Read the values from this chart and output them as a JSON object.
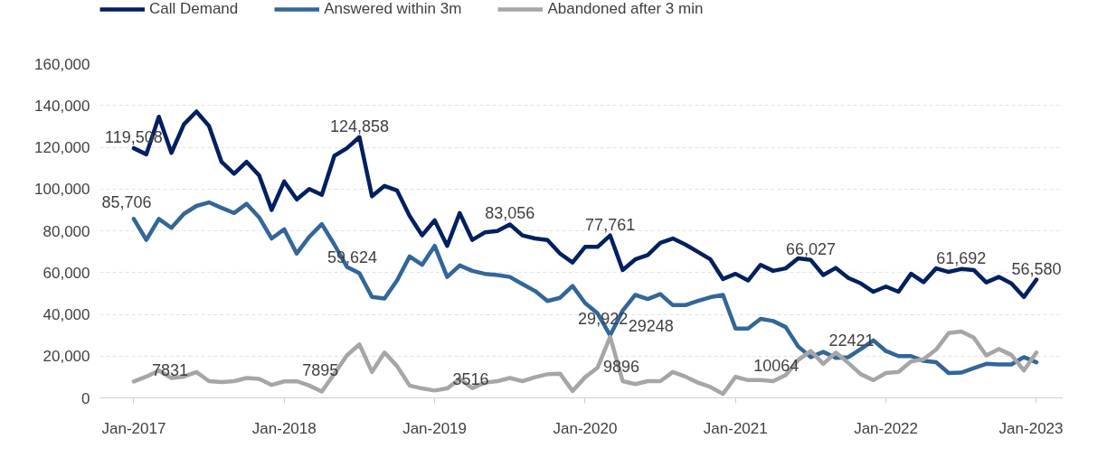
{
  "chart_data": {
    "type": "line",
    "x": [
      "2017-01",
      "2017-02",
      "2017-03",
      "2017-04",
      "2017-05",
      "2017-06",
      "2017-07",
      "2017-08",
      "2017-09",
      "2017-10",
      "2017-11",
      "2017-12",
      "2018-01",
      "2018-02",
      "2018-03",
      "2018-04",
      "2018-05",
      "2018-06",
      "2018-07",
      "2018-08",
      "2018-09",
      "2018-10",
      "2018-11",
      "2018-12",
      "2019-01",
      "2019-02",
      "2019-03",
      "2019-04",
      "2019-05",
      "2019-06",
      "2019-07",
      "2019-08",
      "2019-09",
      "2019-10",
      "2019-11",
      "2019-12",
      "2020-01",
      "2020-02",
      "2020-03",
      "2020-04",
      "2020-05",
      "2020-06",
      "2020-07",
      "2020-08",
      "2020-09",
      "2020-10",
      "2020-11",
      "2020-12",
      "2021-01",
      "2021-02",
      "2021-03",
      "2021-04",
      "2021-05",
      "2021-06",
      "2021-07",
      "2021-08",
      "2021-09",
      "2021-10",
      "2021-11",
      "2021-12",
      "2022-01",
      "2022-02",
      "2022-03",
      "2022-04",
      "2022-05",
      "2022-06",
      "2022-07",
      "2022-08",
      "2022-09",
      "2022-10",
      "2022-11",
      "2022-12",
      "2023-01"
    ],
    "series": [
      {
        "name": "Call Demand",
        "color": "#002060",
        "values": [
          119508,
          116600,
          134600,
          117300,
          131000,
          137100,
          130200,
          113000,
          107300,
          113000,
          106500,
          90000,
          103600,
          95000,
          100000,
          97200,
          115900,
          119500,
          124858,
          96500,
          101500,
          99300,
          87100,
          77800,
          85000,
          72800,
          88500,
          75600,
          79200,
          79900,
          83056,
          77800,
          76300,
          75600,
          69100,
          64800,
          72300,
          72300,
          77761,
          61200,
          66300,
          68400,
          74200,
          76300,
          73400,
          69900,
          66300,
          56900,
          59400,
          56200,
          63700,
          60800,
          62000,
          66800,
          66027,
          58800,
          62200,
          57400,
          54800,
          50800,
          53300,
          50800,
          59400,
          55400,
          62000,
          60300,
          61692,
          61200,
          55300,
          57900,
          54800,
          48300,
          56580
        ],
        "value_labels": [
          "119,508",
          null,
          null,
          null,
          null,
          null,
          null,
          null,
          null,
          null,
          null,
          null,
          null,
          null,
          null,
          null,
          null,
          null,
          "124,858",
          null,
          null,
          null,
          null,
          null,
          null,
          null,
          null,
          null,
          null,
          null,
          "83,056",
          null,
          null,
          null,
          null,
          null,
          null,
          null,
          "77,761",
          null,
          null,
          null,
          null,
          null,
          null,
          null,
          null,
          null,
          null,
          null,
          null,
          null,
          null,
          null,
          "66,027",
          null,
          null,
          null,
          null,
          null,
          null,
          null,
          null,
          null,
          null,
          null,
          "61,692",
          null,
          null,
          null,
          null,
          null,
          "56,580"
        ]
      },
      {
        "name": "Answered within 3m",
        "color": "#336699",
        "values": [
          85706,
          75600,
          85700,
          81400,
          88100,
          91900,
          93600,
          91000,
          88500,
          92900,
          86400,
          76300,
          80700,
          69100,
          77100,
          83200,
          73400,
          62700,
          59624,
          48300,
          47600,
          56200,
          67700,
          63700,
          72800,
          57900,
          63400,
          60800,
          59400,
          58800,
          57900,
          54500,
          51200,
          46400,
          47900,
          53600,
          45400,
          40400,
          29922,
          41800,
          49300,
          47300,
          49700,
          44400,
          44400,
          46400,
          48200,
          49300,
          33200,
          33200,
          37800,
          36800,
          33900,
          24600,
          19500,
          22000,
          19100,
          19500,
          23400,
          27500,
          22400,
          20000,
          20000,
          17700,
          17100,
          11900,
          12100,
          14200,
          16300,
          16000,
          16000,
          19500,
          17000
        ],
        "value_labels": [
          "85,706",
          null,
          null,
          null,
          null,
          null,
          null,
          null,
          null,
          null,
          null,
          null,
          null,
          null,
          null,
          null,
          null,
          null,
          "59,624",
          null,
          null,
          null,
          null,
          null,
          null,
          null,
          null,
          null,
          null,
          null,
          null,
          null,
          null,
          null,
          null,
          null,
          null,
          null,
          "29,922",
          null,
          null,
          null,
          null,
          null,
          null,
          null,
          null,
          null,
          null,
          null,
          null,
          null,
          null,
          null,
          null,
          null,
          null,
          null,
          null,
          null,
          null,
          null,
          null,
          null,
          null,
          null,
          null,
          null,
          null,
          null,
          null,
          null,
          null
        ]
      },
      {
        "name": "Abandoned after 3 min",
        "color": "#a6a6a6",
        "values": [
          7831,
          10200,
          13100,
          9500,
          10200,
          12400,
          8000,
          7600,
          8000,
          9500,
          9100,
          6200,
          7895,
          8000,
          5900,
          3000,
          11600,
          20300,
          25600,
          12400,
          21700,
          15200,
          5900,
          4500,
          3516,
          4500,
          9100,
          4700,
          7300,
          8000,
          9500,
          8000,
          9900,
          11300,
          11600,
          3300,
          9896,
          14500,
          29248,
          8000,
          6600,
          8000,
          8000,
          12400,
          10200,
          7300,
          5200,
          1900,
          10064,
          8500,
          8500,
          8000,
          10900,
          18100,
          22421,
          16300,
          21700,
          16700,
          11300,
          8500,
          11900,
          12400,
          17400,
          18500,
          23100,
          31000,
          31800,
          28900,
          20300,
          23400,
          20600,
          13100,
          21700
        ],
        "value_labels": [
          "7831",
          null,
          null,
          null,
          null,
          null,
          null,
          null,
          null,
          null,
          null,
          null,
          "7895",
          null,
          null,
          null,
          null,
          null,
          null,
          null,
          null,
          null,
          null,
          null,
          "3516",
          null,
          null,
          null,
          null,
          null,
          null,
          null,
          null,
          null,
          null,
          null,
          "9896",
          null,
          "29248",
          null,
          null,
          null,
          null,
          null,
          null,
          null,
          null,
          null,
          "10064",
          null,
          null,
          null,
          null,
          null,
          "22421",
          null,
          null,
          null,
          null,
          null,
          null,
          null,
          null,
          null,
          null,
          null,
          null,
          null,
          null,
          null,
          null,
          null,
          null
        ]
      }
    ],
    "xlim": [
      "2016-10-10",
      "2023-03-05"
    ],
    "xticks": [
      {
        "value": "2017-01",
        "label": "Jan-2017"
      },
      {
        "value": "2018-01",
        "label": "Jan-2018"
      },
      {
        "value": "2019-01",
        "label": "Jan-2019"
      },
      {
        "value": "2020-01",
        "label": "Jan-2020"
      },
      {
        "value": "2021-01",
        "label": "Jan-2021"
      },
      {
        "value": "2022-01",
        "label": "Jan-2022"
      },
      {
        "value": "2023-01",
        "label": "Jan-2023"
      }
    ],
    "ylim": [
      0,
      160000
    ],
    "yticks": [
      {
        "value": 0,
        "label": "0"
      },
      {
        "value": 20000,
        "label": "20,000"
      },
      {
        "value": 40000,
        "label": "40,000"
      },
      {
        "value": 60000,
        "label": "60,000"
      },
      {
        "value": 80000,
        "label": "80,000"
      },
      {
        "value": 100000,
        "label": "100,000"
      },
      {
        "value": 120000,
        "label": "120,000"
      },
      {
        "value": 140000,
        "label": "140,000"
      },
      {
        "value": 160000,
        "label": "160,000"
      }
    ],
    "grid": "y",
    "legend": "top",
    "line_style": "solid",
    "marker": "none"
  }
}
